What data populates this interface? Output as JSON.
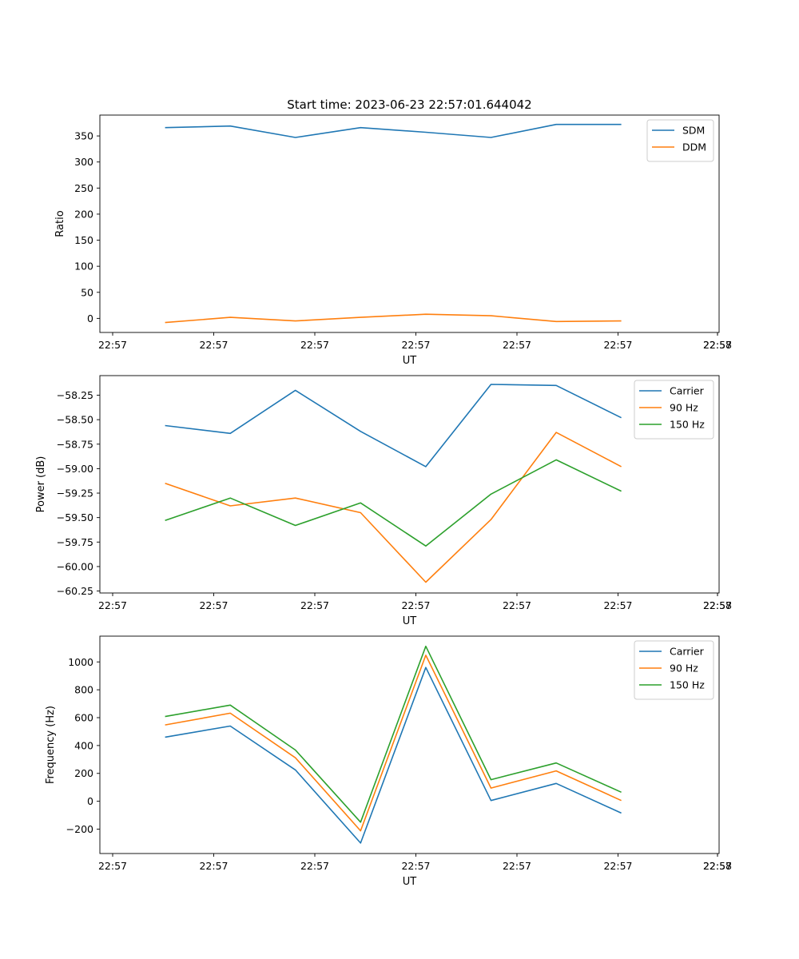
{
  "figure": {
    "title": "Start time: 2023-06-23 22:57:01.644042"
  },
  "chart_data": [
    {
      "type": "line",
      "title": "Start time: 2023-06-23 22:57:01.644042",
      "xlabel": "UT",
      "ylabel": "Ratio",
      "x_tick_labels": [
        "22:57",
        "22:57",
        "22:57",
        "22:57",
        "22:57",
        "22:57",
        "22:57",
        "22:58"
      ],
      "y_ticks": [
        0,
        50,
        100,
        150,
        200,
        250,
        300,
        350
      ],
      "ylim": [
        -27,
        390
      ],
      "legend_position": "top-right",
      "grid": false,
      "series": [
        {
          "name": "SDM",
          "color": "#1f77b4",
          "values": [
            366,
            369,
            347,
            366,
            357,
            347,
            372,
            372
          ]
        },
        {
          "name": "DDM",
          "color": "#ff7f0e",
          "values": [
            -8,
            2,
            -5,
            2,
            8,
            5,
            -6,
            -5
          ]
        }
      ]
    },
    {
      "type": "line",
      "title": "",
      "xlabel": "UT",
      "ylabel": "Power (dB)",
      "x_tick_labels": [
        "22:57",
        "22:57",
        "22:57",
        "22:57",
        "22:57",
        "22:57",
        "22:57",
        "22:58"
      ],
      "y_ticks": [
        -58.25,
        -58.5,
        -58.75,
        -59.0,
        -59.25,
        -59.5,
        -59.75,
        -60.0,
        -60.25
      ],
      "y_tick_labels": [
        "−58.25",
        "−58.50",
        "−58.75",
        "−59.00",
        "−59.25",
        "−59.50",
        "−59.75",
        "−60.00",
        "−60.25"
      ],
      "ylim": [
        -60.27,
        -58.05
      ],
      "legend_position": "top-right",
      "grid": false,
      "series": [
        {
          "name": "Carrier",
          "color": "#1f77b4",
          "values": [
            -58.56,
            -58.64,
            -58.2,
            -58.62,
            -58.98,
            -58.14,
            -58.15,
            -58.48
          ]
        },
        {
          "name": "90 Hz",
          "color": "#ff7f0e",
          "values": [
            -59.15,
            -59.38,
            -59.3,
            -59.45,
            -60.16,
            -59.52,
            -58.63,
            -58.98
          ]
        },
        {
          "name": "150 Hz",
          "color": "#2ca02c",
          "values": [
            -59.53,
            -59.3,
            -59.58,
            -59.35,
            -59.79,
            -59.26,
            -58.91,
            -59.23
          ]
        }
      ]
    },
    {
      "type": "line",
      "title": "",
      "xlabel": "UT",
      "ylabel": "Frequency (Hz)",
      "x_tick_labels": [
        "22:57",
        "22:57",
        "22:57",
        "22:57",
        "22:57",
        "22:57",
        "22:57",
        "22:58"
      ],
      "y_ticks": [
        -200,
        0,
        200,
        400,
        600,
        800,
        1000
      ],
      "y_tick_labels": [
        "−200",
        "0",
        "200",
        "400",
        "600",
        "800",
        "1000"
      ],
      "ylim": [
        -375,
        1185
      ],
      "legend_position": "top-right",
      "grid": false,
      "series": [
        {
          "name": "Carrier",
          "color": "#1f77b4",
          "values": [
            460,
            540,
            225,
            -300,
            960,
            5,
            128,
            -85
          ]
        },
        {
          "name": "90 Hz",
          "color": "#ff7f0e",
          "values": [
            548,
            632,
            312,
            -212,
            1048,
            95,
            218,
            5
          ]
        },
        {
          "name": "150 Hz",
          "color": "#2ca02c",
          "values": [
            608,
            690,
            368,
            -150,
            1112,
            155,
            275,
            65
          ]
        }
      ]
    }
  ]
}
